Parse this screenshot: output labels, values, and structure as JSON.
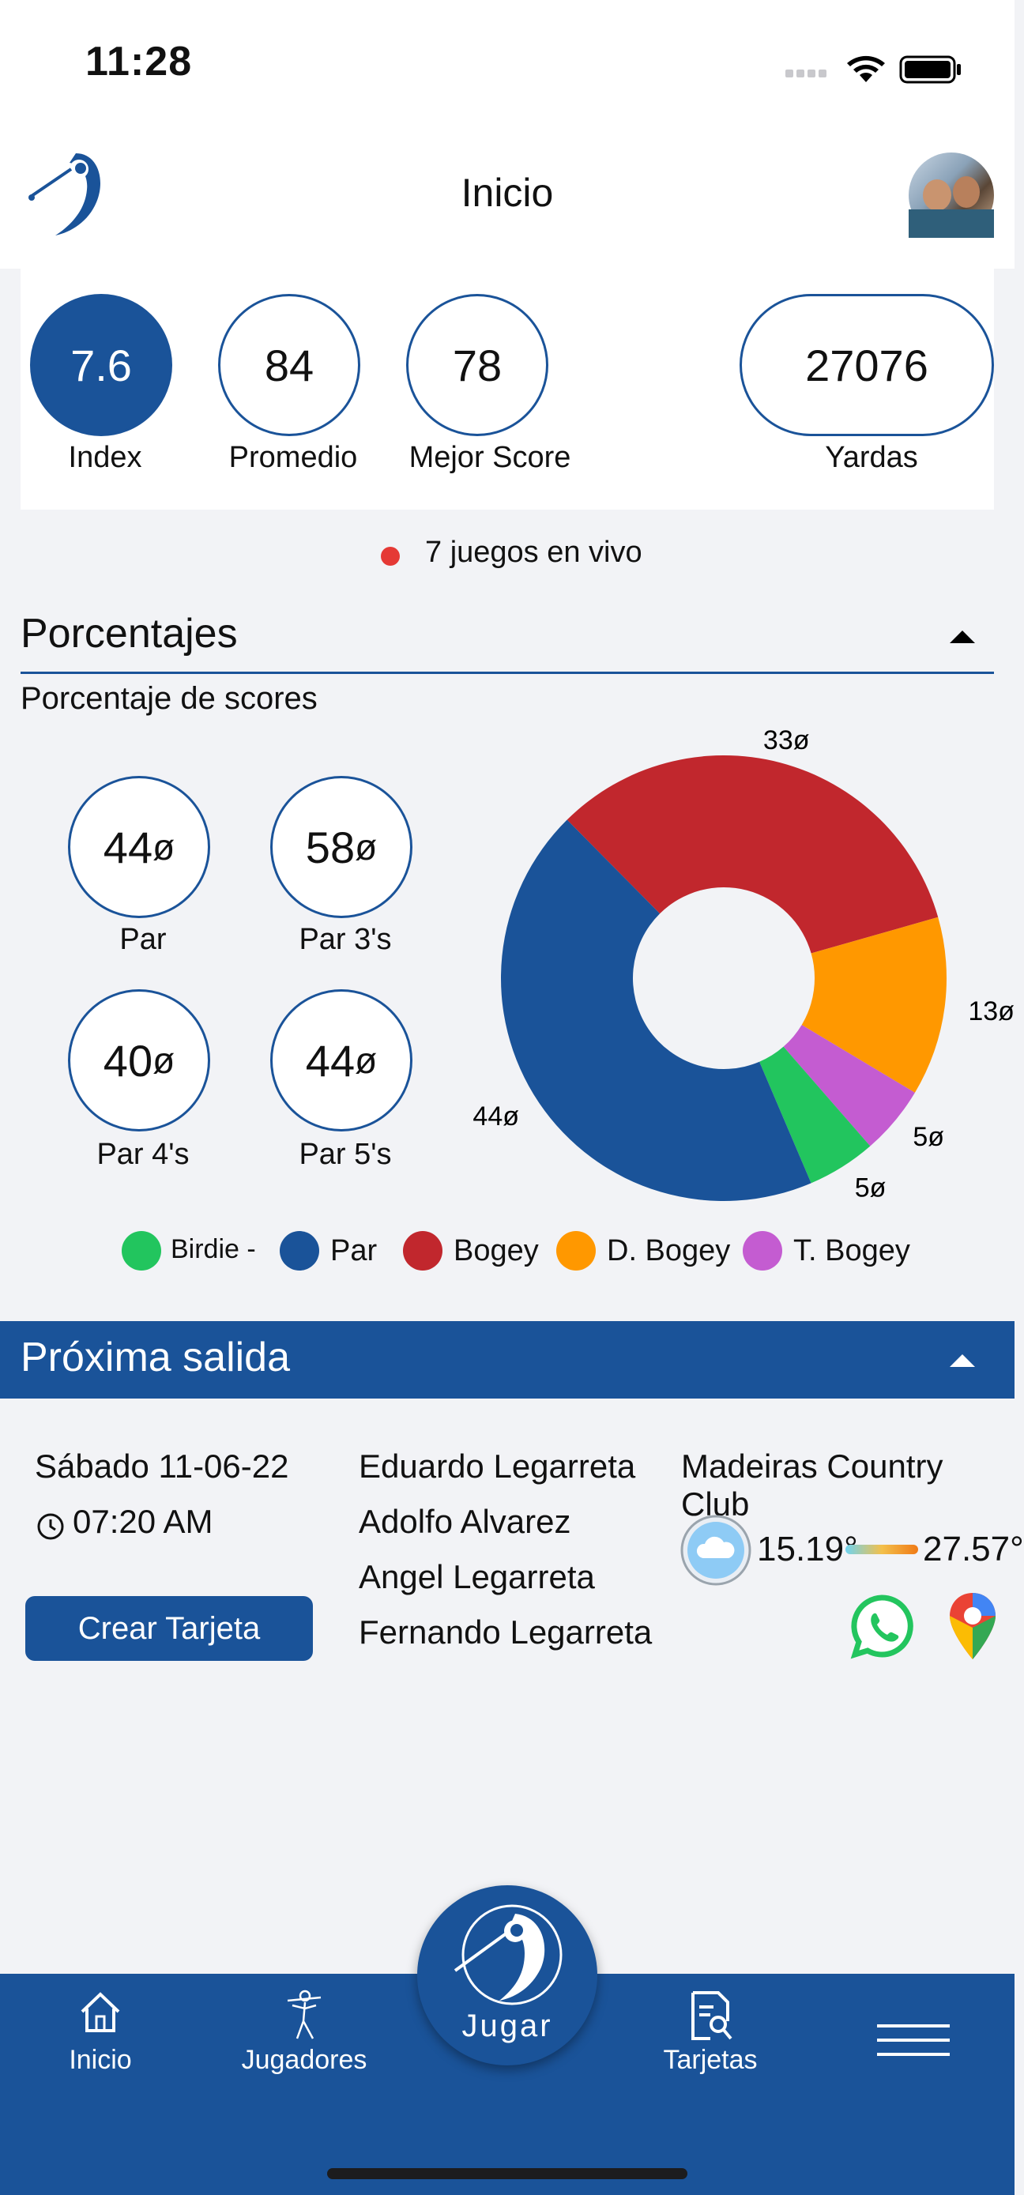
{
  "status_bar": {
    "time": "11:28"
  },
  "header": {
    "title": "Inicio"
  },
  "stats": {
    "index_value": "7.6",
    "index_label": "Index",
    "promedio_value": "84",
    "promedio_label": "Promedio",
    "mejor_value": "78",
    "mejor_label": "Mejor Score",
    "yardas_value": "27076",
    "yardas_label": "Yardas"
  },
  "live": {
    "text": "7 juegos en vivo"
  },
  "porcentajes": {
    "title": "Porcentajes",
    "subtitle": "Porcentaje de scores",
    "circles": [
      {
        "value": "44",
        "label": "Par"
      },
      {
        "value": "58",
        "label": "Par 3's"
      },
      {
        "value": "40",
        "label": "Par 4's"
      },
      {
        "value": "44",
        "label": "Par 5's"
      }
    ]
  },
  "chart_data": {
    "type": "pie",
    "categories": [
      "Bogey",
      "D. Bogey",
      "T. Bogey",
      "Birdie -",
      "Par"
    ],
    "values": [
      33,
      13,
      5,
      5,
      44
    ],
    "data_labels": [
      "33",
      "13",
      "5",
      "5",
      "44"
    ],
    "colors": [
      "#c1272d",
      "#ff9800",
      "#c45cd1",
      "#22c55e",
      "#1a5399"
    ]
  },
  "legend": [
    {
      "label": "Birdie -",
      "color": "#22c55e"
    },
    {
      "label": "Par",
      "color": "#1a5399"
    },
    {
      "label": "Bogey",
      "color": "#c1272d"
    },
    {
      "label": "D. Bogey",
      "color": "#ff9800"
    },
    {
      "label": "T. Bogey",
      "color": "#c45cd1"
    }
  ],
  "proxima": {
    "title": "Próxima salida",
    "date": "Sábado 11-06-22",
    "time": "07:20 AM",
    "button": "Crear Tarjeta",
    "players": [
      "Eduardo Legarreta",
      "Adolfo Alvarez",
      "Angel Legarreta",
      "Fernando Legarreta"
    ],
    "club": "Madeiras Country Club",
    "temp_min": "15.19°",
    "temp_max": "27.57°"
  },
  "nav": {
    "inicio": "Inicio",
    "jugadores": "Jugadores",
    "jugar": "Jugar",
    "tarjetas": "Tarjetas"
  },
  "colors": {
    "primary": "#1a5399",
    "live_dot": "#e53935"
  }
}
